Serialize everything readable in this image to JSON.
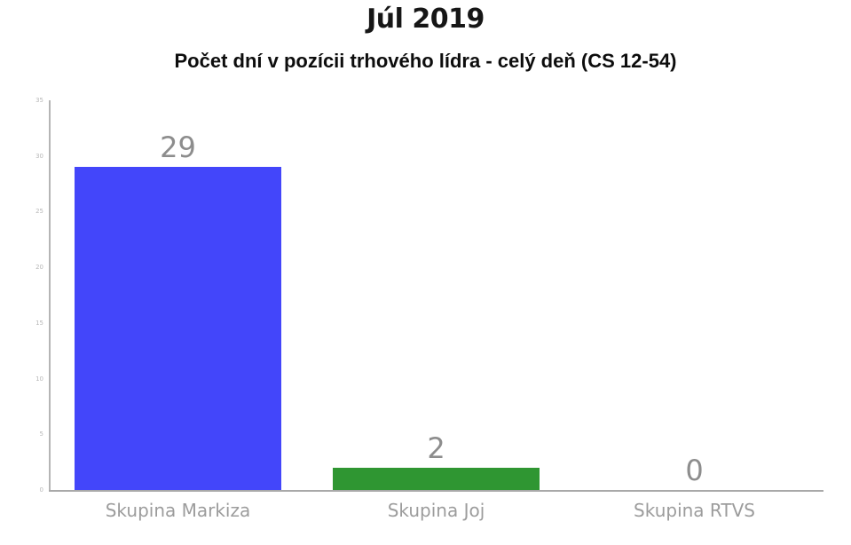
{
  "chart_data": {
    "type": "bar",
    "title": "Júl 2019",
    "subtitle": "Počet dní v pozícii trhového lídra - celý deň (CS 12-54)",
    "categories": [
      "Skupina Markiza",
      "Skupina Joj",
      "Skupina RTVS"
    ],
    "values": [
      29,
      2,
      0
    ],
    "value_labels": [
      "29",
      "2",
      "0"
    ],
    "bar_colors": [
      "#4346fa",
      "#2f9632",
      null
    ],
    "xlabel": "",
    "ylabel": "",
    "ylim": [
      0,
      35
    ],
    "yticks": [
      0,
      5,
      10,
      15,
      20,
      25,
      30,
      35
    ],
    "grid": false,
    "legend": false,
    "colors": {
      "title_text": "#161616",
      "subtitle_text": "#0d0d0d",
      "value_label_text": "#8d8d8d",
      "category_label_text": "#9c9c9c",
      "tick_label_text": "#b8b8b8",
      "axis_line": "#a9a9a9",
      "background": "#ffffff"
    }
  }
}
